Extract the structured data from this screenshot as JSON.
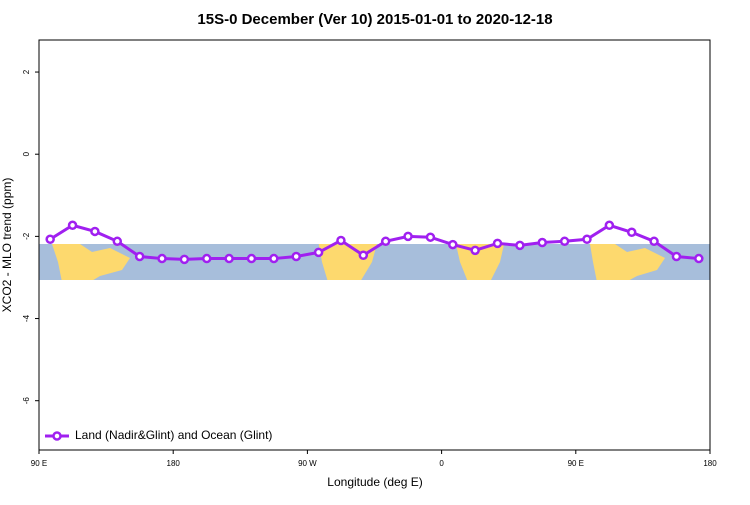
{
  "chart_data": {
    "type": "line",
    "title": "15S-0 December (Ver 10)   2015-01-01 to 2020-12-18",
    "x_label": "Longitude (deg E)",
    "y_label": "XCO2 - MLO trend (ppm)",
    "x": [
      97.5,
      112.5,
      127.5,
      142.5,
      157.5,
      172.5,
      187.5,
      202.5,
      217.5,
      232.5,
      247.5,
      262.5,
      277.5,
      292.5,
      307.5,
      322.5,
      337.5,
      352.5,
      367.5,
      382.5,
      397.5,
      412.5,
      427.5,
      442.5,
      457.5,
      472.5,
      487.5,
      502.5,
      517.5,
      532.5
    ],
    "series": [
      {
        "name": "Land (Nadir&Glint) and Ocean (Glint)",
        "color": "#a020f0",
        "values": [
          -2.07,
          -1.73,
          -1.88,
          -2.12,
          -2.49,
          -2.54,
          -2.56,
          -2.54,
          -2.54,
          -2.54,
          -2.54,
          -2.49,
          -2.39,
          -2.1,
          -2.46,
          -2.12,
          -2.0,
          -2.02,
          -2.2,
          -2.34,
          -2.17,
          -2.22,
          -2.15,
          -2.12,
          -2.07,
          -1.73,
          -1.9,
          -2.12,
          -2.49,
          -2.54
        ]
      }
    ],
    "xlim": [
      90,
      540
    ],
    "xticks": [
      {
        "value": 90,
        "label": "90 E"
      },
      {
        "value": 180,
        "label": "180"
      },
      {
        "value": 270,
        "label": "90 W"
      },
      {
        "value": 360,
        "label": "0"
      },
      {
        "value": 450,
        "label": "90 E"
      },
      {
        "value": 540,
        "label": "180"
      }
    ],
    "ylim": [
      -7.2,
      2.78
    ],
    "yticks": [
      2,
      0,
      -2,
      -4,
      -6
    ],
    "legend": "bottom-left"
  }
}
